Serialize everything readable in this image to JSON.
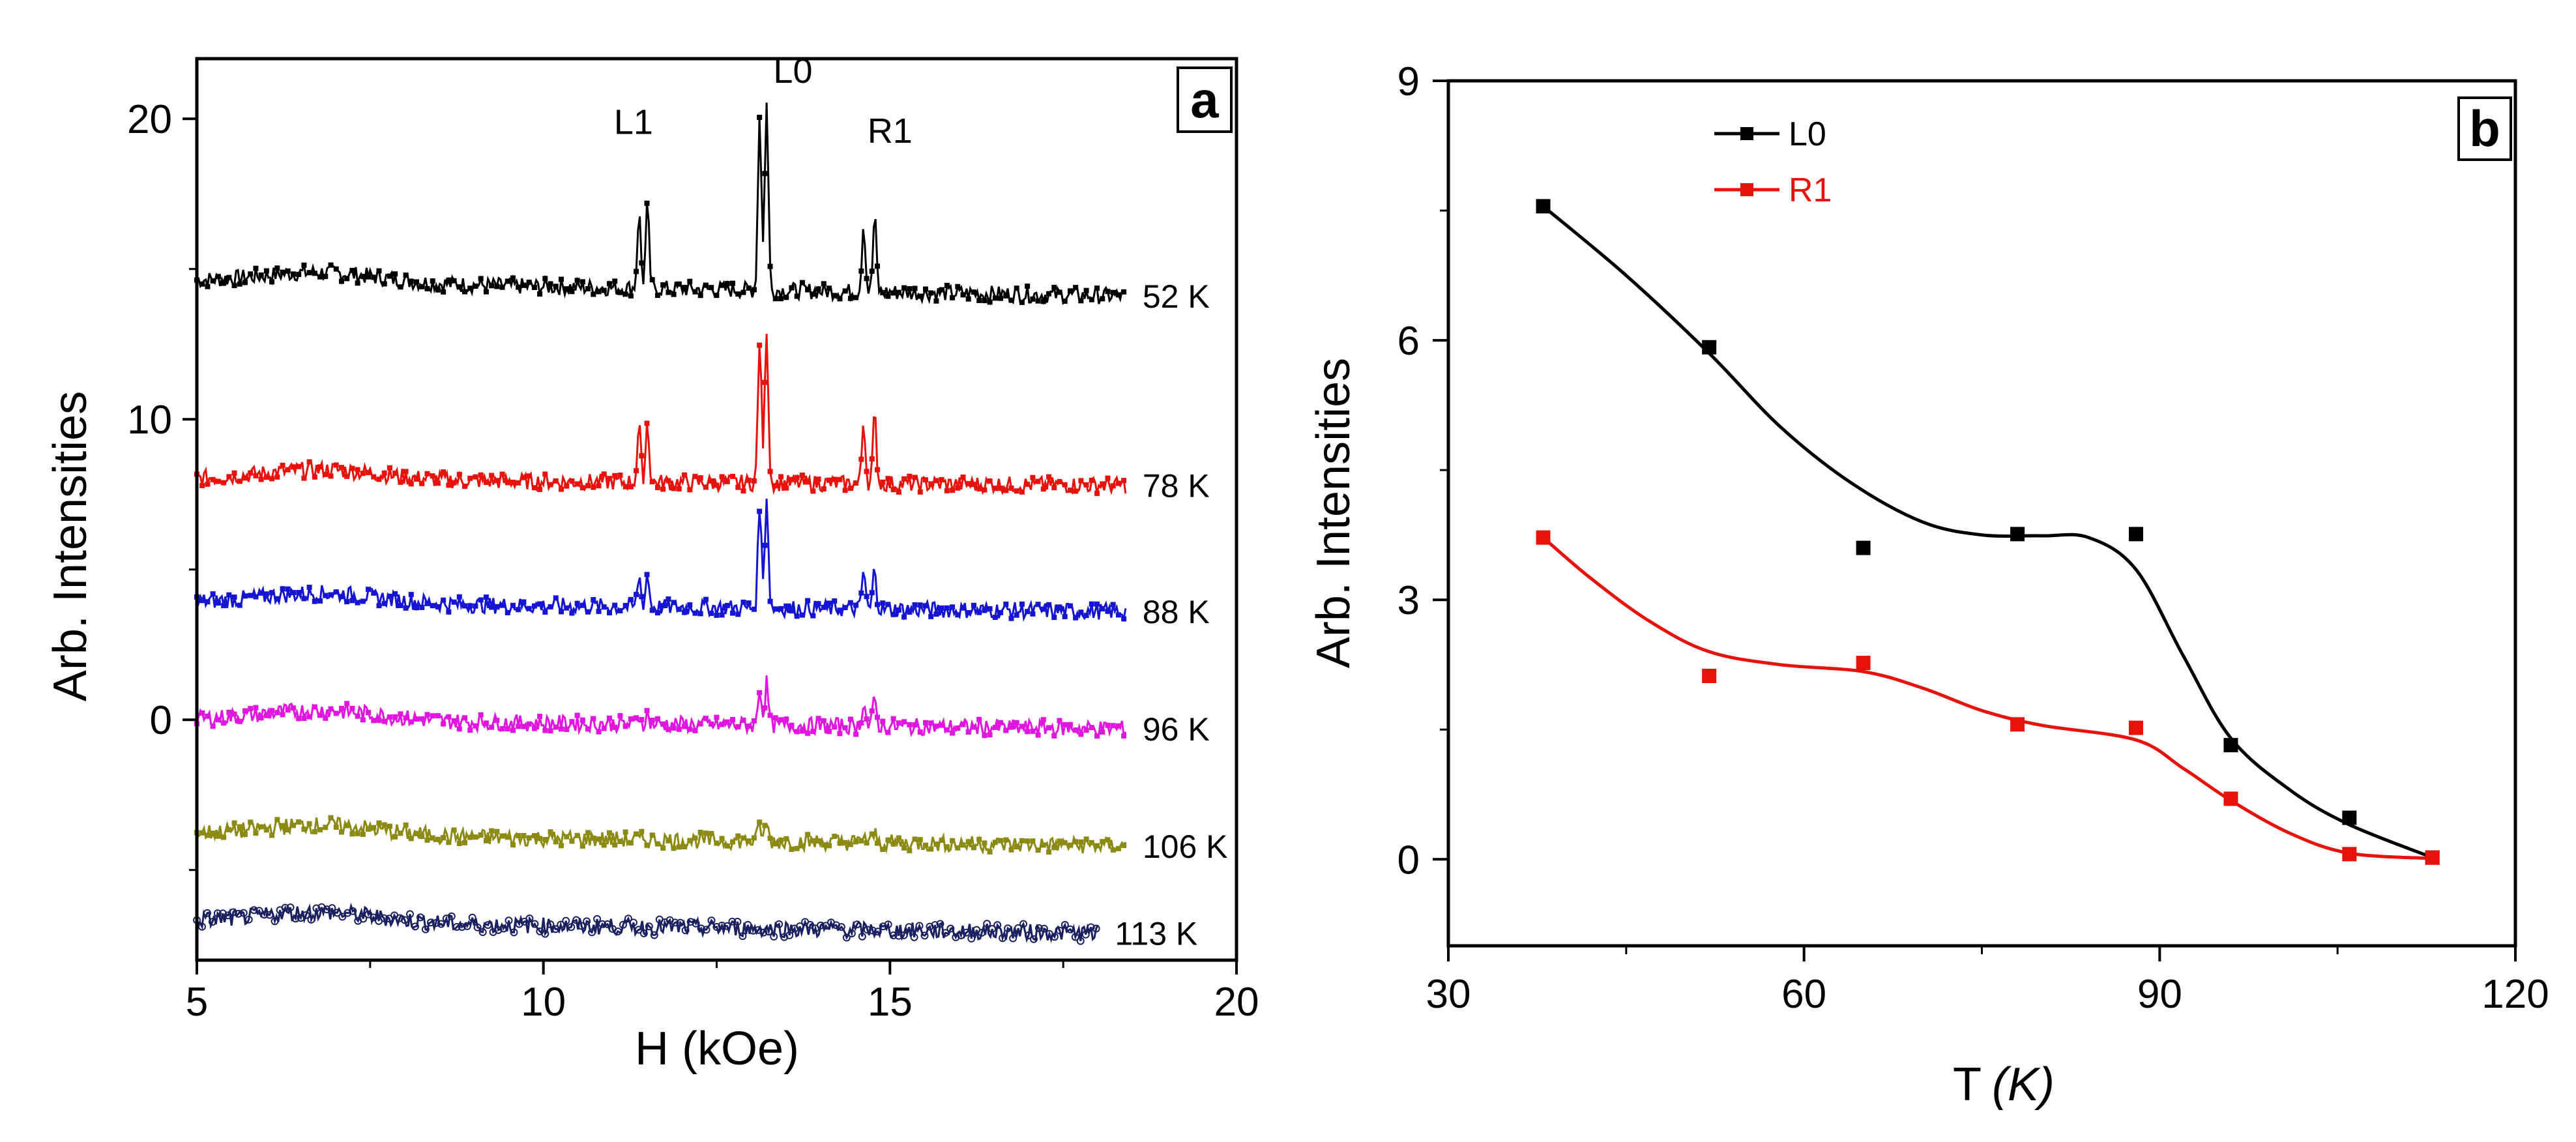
{
  "chart_data": [
    {
      "panel": "a",
      "type": "line",
      "xlabel": "H (kOe)",
      "ylabel": "Arb. Intensities",
      "xlim": [
        5,
        20
      ],
      "ylim": [
        -8,
        22
      ],
      "xticks": [
        5,
        10,
        15,
        20
      ],
      "yticks": [
        0,
        10,
        20
      ],
      "xtick_labels": [
        "5",
        "10",
        "15",
        "20"
      ],
      "ytick_labels": [
        "0",
        "10",
        "20"
      ],
      "grid": false,
      "peak_labels": [
        {
          "text": "L1",
          "x": 11.3,
          "y": 19.5
        },
        {
          "text": "L0",
          "x": 13.6,
          "y": 21.2
        },
        {
          "text": "R1",
          "x": 15.0,
          "y": 19.2
        }
      ],
      "peaks": [
        {
          "name": "L1",
          "positions": [
            11.38,
            11.5
          ]
        },
        {
          "name": "L0",
          "positions": [
            13.12,
            13.22
          ]
        },
        {
          "name": "R1",
          "positions": [
            14.62,
            14.78
          ]
        }
      ],
      "series": [
        {
          "name": "52 K",
          "label": "52 K",
          "color": "#000000",
          "baseline": 14.6,
          "end_baseline": 14.1,
          "peak_heights": [
            2.7,
            6.4,
            2.5
          ],
          "marker": "square"
        },
        {
          "name": "78 K",
          "label": "78 K",
          "color": "#e8120c",
          "baseline": 8.0,
          "end_baseline": 7.8,
          "peak_heights": [
            2.0,
            5.2,
            2.3
          ],
          "marker": "circle"
        },
        {
          "name": "88 K",
          "label": "88 K",
          "color": "#1414d2",
          "baseline": 3.9,
          "end_baseline": 3.6,
          "peak_heights": [
            1.1,
            3.8,
            1.4
          ],
          "marker": "triangle"
        },
        {
          "name": "96 K",
          "label": "96 K",
          "color": "#e016e0",
          "baseline": 0.0,
          "end_baseline": -0.3,
          "peak_heights": [
            0.3,
            1.4,
            0.9
          ],
          "marker": "triangle-down"
        },
        {
          "name": "106 K",
          "label": "106 K",
          "color": "#8b8b14",
          "baseline": -3.8,
          "end_baseline": -4.2,
          "peak_heights": [
            0.0,
            0.6,
            0.3
          ],
          "marker": "diamond"
        },
        {
          "name": "113 K",
          "label": "113 K",
          "color": "#1a2060",
          "baseline": -6.7,
          "end_baseline": -7.1,
          "peak_heights": [
            0.0,
            0.0,
            0.0
          ],
          "marker": "open-circle"
        }
      ]
    },
    {
      "panel": "b",
      "type": "scatter",
      "xlabel": "T",
      "xlabel_unit": "(K)",
      "ylabel": "Arb. Intensities",
      "xlim": [
        30,
        120
      ],
      "ylim": [
        -1,
        9
      ],
      "xticks": [
        30,
        60,
        90,
        120
      ],
      "yticks": [
        0,
        3,
        6,
        9
      ],
      "xtick_labels": [
        "30",
        "60",
        "90",
        "120"
      ],
      "ytick_labels": [
        "0",
        "3",
        "6",
        "9"
      ],
      "grid": false,
      "legend_position": "top-left",
      "series": [
        {
          "name": "L0",
          "color": "#000000",
          "x": [
            38,
            52,
            65,
            78,
            88,
            96,
            106,
            113
          ],
          "y": [
            7.55,
            5.92,
            3.6,
            3.76,
            3.76,
            1.32,
            0.48,
            0.02
          ],
          "fit": [
            [
              38,
              7.55
            ],
            [
              45,
              6.75
            ],
            [
              52,
              5.85
            ],
            [
              58,
              5.0
            ],
            [
              64,
              4.35
            ],
            [
              70,
              3.9
            ],
            [
              75,
              3.75
            ],
            [
              80,
              3.74
            ],
            [
              84,
              3.72
            ],
            [
              88,
              3.35
            ],
            [
              92,
              2.35
            ],
            [
              96,
              1.4
            ],
            [
              101,
              0.8
            ],
            [
              106,
              0.4
            ],
            [
              113,
              0.02
            ]
          ]
        },
        {
          "name": "R1",
          "color": "#e8120c",
          "x": [
            38,
            52,
            65,
            78,
            88,
            96,
            106,
            113
          ],
          "y": [
            3.72,
            2.12,
            2.27,
            1.56,
            1.52,
            0.7,
            0.06,
            0.02
          ],
          "fit": [
            [
              38,
              3.72
            ],
            [
              42,
              3.25
            ],
            [
              47,
              2.75
            ],
            [
              52,
              2.4
            ],
            [
              58,
              2.25
            ],
            [
              65,
              2.17
            ],
            [
              70,
              1.98
            ],
            [
              75,
              1.72
            ],
            [
              80,
              1.55
            ],
            [
              88,
              1.38
            ],
            [
              92,
              1.05
            ],
            [
              96,
              0.68
            ],
            [
              101,
              0.3
            ],
            [
              106,
              0.07
            ],
            [
              113,
              0.01
            ]
          ]
        }
      ]
    }
  ]
}
